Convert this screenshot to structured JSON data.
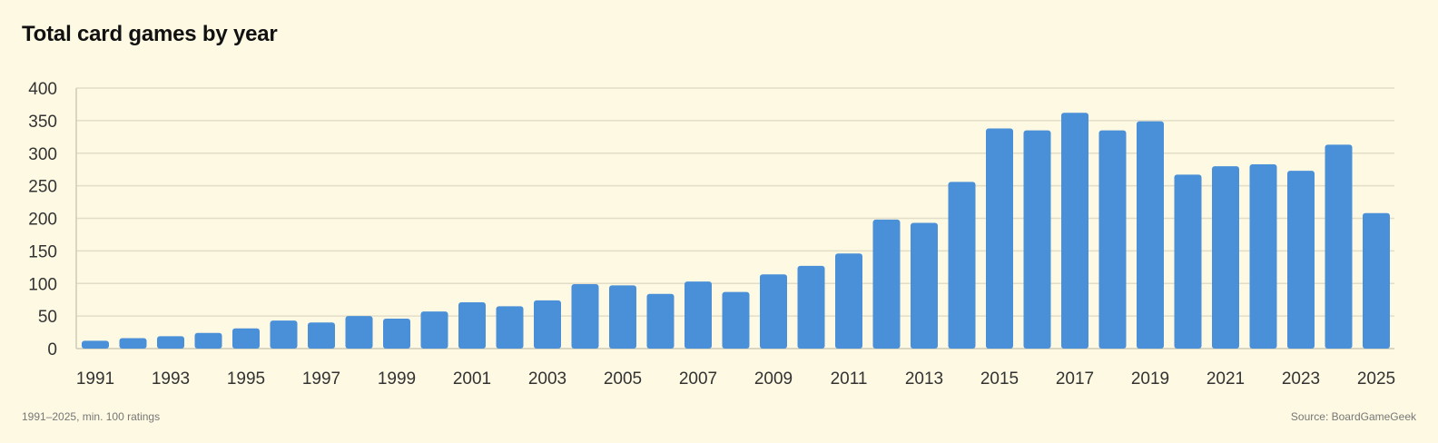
{
  "title": "Total card games by year",
  "footer": {
    "note": "1991–2025, min. 100 ratings",
    "source": "Source: BoardGameGeek"
  },
  "colors": {
    "bar": "#4a90d9",
    "grid": "#e2ddc8",
    "axis": "#cfcab6",
    "background": "#fdf9e2"
  },
  "chart_data": {
    "type": "bar",
    "title": "Total card games by year",
    "xlabel": "",
    "ylabel": "",
    "ylim": [
      0,
      400
    ],
    "yticks": [
      0,
      50,
      100,
      150,
      200,
      250,
      300,
      350,
      400
    ],
    "grid": true,
    "categories": [
      "1991",
      "1992",
      "1993",
      "1994",
      "1995",
      "1996",
      "1997",
      "1998",
      "1999",
      "2000",
      "2001",
      "2002",
      "2003",
      "2004",
      "2005",
      "2006",
      "2007",
      "2008",
      "2009",
      "2010",
      "2011",
      "2012",
      "2013",
      "2014",
      "2015",
      "2016",
      "2017",
      "2018",
      "2019",
      "2020",
      "2021",
      "2022",
      "2023",
      "2024",
      "2025"
    ],
    "xtick_labels": [
      "1991",
      "1993",
      "1995",
      "1997",
      "1999",
      "2001",
      "2003",
      "2005",
      "2007",
      "2009",
      "2011",
      "2013",
      "2015",
      "2017",
      "2019",
      "2021",
      "2023",
      "2025"
    ],
    "values": [
      12,
      16,
      19,
      24,
      31,
      43,
      40,
      50,
      46,
      57,
      71,
      65,
      74,
      99,
      97,
      84,
      103,
      87,
      114,
      127,
      146,
      198,
      193,
      256,
      338,
      335,
      362,
      335,
      349,
      267,
      280,
      283,
      273,
      313,
      208
    ]
  }
}
